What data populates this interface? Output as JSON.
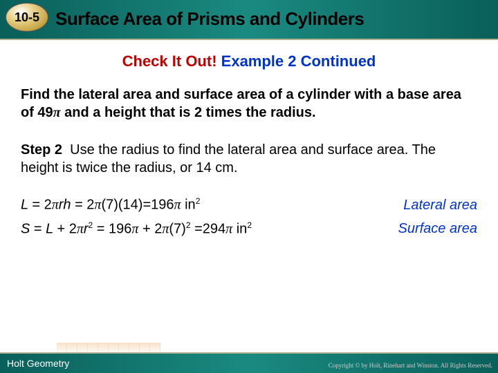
{
  "header": {
    "lesson_number": "10-5",
    "title": "Surface Area of Prisms and Cylinders"
  },
  "subtitle": {
    "part1": "Check It Out!",
    "part2": "Example 2 Continued"
  },
  "problem": "Find the lateral area and surface area of a cylinder with a base area of 49π and a height that is 2 times the radius.",
  "step": {
    "label": "Step 2",
    "text": "Use the radius to find the lateral area and surface area. The height is twice the radius, or 14 cm."
  },
  "equations": {
    "lateral": {
      "formula": "L = 2πrh = 2π(7)(14)=196π in",
      "exp": "2",
      "label": "Lateral area"
    },
    "surface": {
      "formula_a": "S = L + 2πr",
      "exp1": "2",
      "formula_b": " = 196π + 2π(7)",
      "exp2": "2",
      "formula_c": " =294π in",
      "exp3": "2",
      "label": "Surface area"
    }
  },
  "footer": {
    "brand": "Holt Geometry",
    "copyright": "Copyright © by Holt, Rinehart and Winston. All Rights Reserved."
  }
}
